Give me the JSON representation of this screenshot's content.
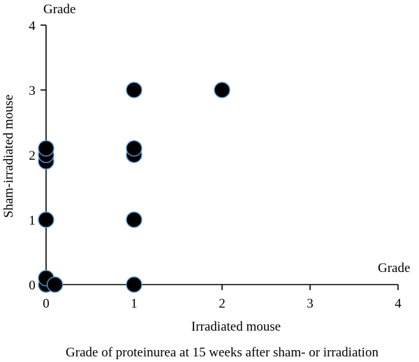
{
  "chart_data": {
    "type": "scatter",
    "title": "Grade of proteinurea at 15 weeks after sham- or irradiation",
    "xlabel": "Irradiated mouse",
    "ylabel": "Sham-irradiated mouse",
    "x_unit_label": "Grade",
    "y_unit_label": "Grade",
    "xlim": [
      0,
      4
    ],
    "ylim": [
      0,
      4
    ],
    "x_ticks": [
      "0",
      "1",
      "2",
      "3",
      "4"
    ],
    "y_ticks": [
      "0",
      "1",
      "2",
      "3",
      "4"
    ],
    "grid": false,
    "marker_fill": "#000000",
    "marker_stroke": "#5b9bd5",
    "points": [
      {
        "x": 0,
        "y": 0
      },
      {
        "x": 0,
        "y": 0.1
      },
      {
        "x": 0.1,
        "y": 0
      },
      {
        "x": 0,
        "y": 1
      },
      {
        "x": 0,
        "y": 1.9
      },
      {
        "x": 0,
        "y": 2
      },
      {
        "x": 0,
        "y": 2.1
      },
      {
        "x": 1,
        "y": 0
      },
      {
        "x": 1,
        "y": 1
      },
      {
        "x": 1,
        "y": 2
      },
      {
        "x": 1,
        "y": 2.1
      },
      {
        "x": 1,
        "y": 3
      },
      {
        "x": 2,
        "y": 3
      }
    ]
  }
}
